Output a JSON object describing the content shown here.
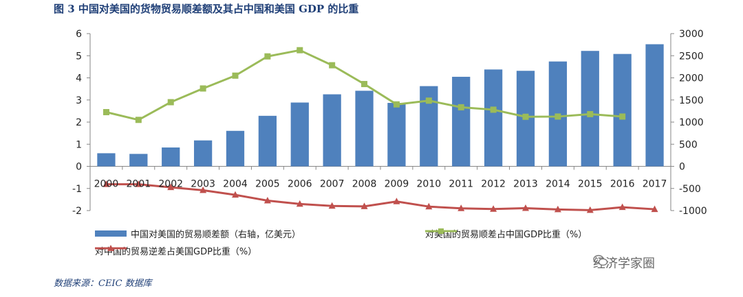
{
  "title": "图 3  中国对美国的货物贸易顺差额及其占中国和美国 GDP 的比重",
  "source": "数据来源：CEIC 数据库",
  "watermark": "经济学家圈",
  "watermark_icon": "wechat-icon",
  "chart_data": {
    "type": "bar",
    "title": "图 3  中国对美国的货物贸易顺差额及其占中国和美国 GDP 的比重",
    "categories": [
      "2000",
      "2001",
      "2002",
      "2003",
      "2004",
      "2005",
      "2006",
      "2007",
      "2008",
      "2009",
      "2010",
      "2011",
      "2012",
      "2013",
      "2014",
      "2015",
      "2016",
      "2017"
    ],
    "y_left": {
      "ylim": [
        -2,
        6
      ],
      "ticks": [
        -2,
        -1,
        0,
        1,
        2,
        3,
        4,
        5,
        6
      ]
    },
    "y_right": {
      "ylim": [
        -1000,
        3000
      ],
      "ticks": [
        -1000,
        -500,
        0,
        500,
        1000,
        1500,
        2000,
        2500,
        3000
      ]
    },
    "grid": false,
    "legend_position": "bottom",
    "series": [
      {
        "name": "中国对美国的贸易顺差额（右轴，亿美元）",
        "type": "bar",
        "axis": "right",
        "color": "#4f81bd",
        "values": [
          296,
          281,
          426,
          586,
          802,
          1142,
          1442,
          1628,
          1708,
          1434,
          1813,
          2024,
          2189,
          2159,
          2370,
          2609,
          2540,
          2760
        ]
      },
      {
        "name": "对美国的贸易顺差占中国GDP比重（%）",
        "type": "line",
        "axis": "left",
        "color": "#9bbb59",
        "marker": "square",
        "values": [
          2.45,
          2.1,
          2.9,
          3.52,
          4.1,
          4.97,
          5.25,
          4.57,
          3.72,
          2.8,
          2.97,
          2.67,
          2.56,
          2.24,
          2.25,
          2.36,
          2.25,
          null
        ]
      },
      {
        "name": "对中国的贸易逆差占美国GDP比重（%）",
        "type": "line",
        "axis": "left",
        "color": "#c0504d",
        "marker": "triangle",
        "values": [
          -0.81,
          -0.81,
          -0.95,
          -1.08,
          -1.29,
          -1.55,
          -1.7,
          -1.79,
          -1.81,
          -1.59,
          -1.82,
          -1.9,
          -1.93,
          -1.89,
          -1.95,
          -1.98,
          -1.85,
          -1.94
        ]
      }
    ]
  }
}
